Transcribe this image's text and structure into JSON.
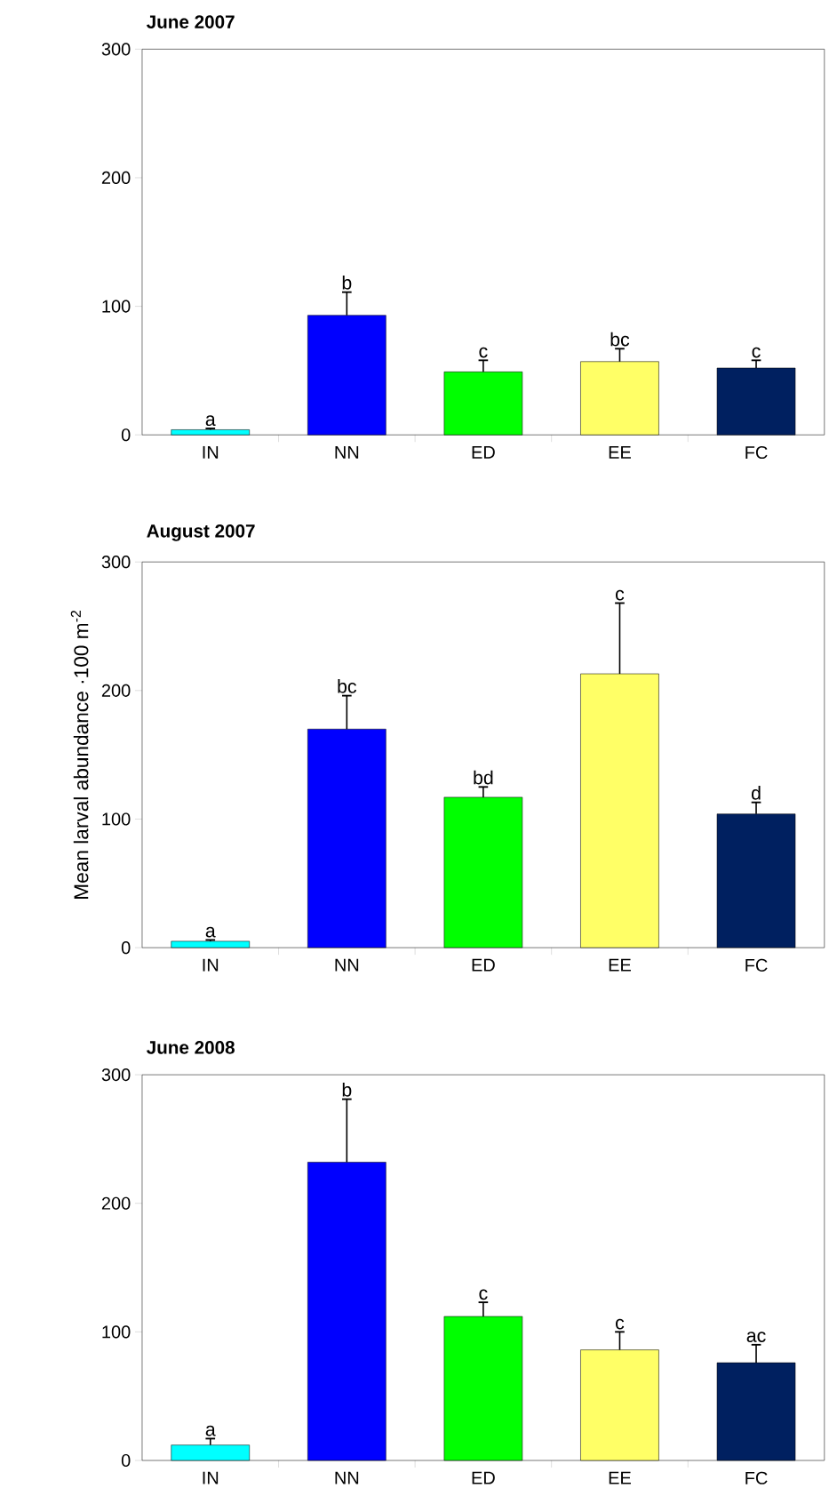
{
  "chart_data": [
    {
      "type": "bar",
      "title": "June 2007",
      "categories": [
        "IN",
        "NN",
        "ED",
        "EE",
        "FC"
      ],
      "values": [
        4,
        93,
        49,
        57,
        52
      ],
      "errors": [
        [
          4,
          5
        ],
        [
          93,
          111
        ],
        [
          49,
          58
        ],
        [
          57,
          67
        ],
        [
          52,
          58
        ]
      ],
      "colors": [
        "#00ffff",
        "#0000ff",
        "#00ff00",
        "#ffff66",
        "#002060"
      ],
      "ylim": [
        0,
        300
      ],
      "yticks": [
        0,
        100,
        200,
        300
      ],
      "annotations": [
        {
          "text": "a",
          "x": "IN",
          "y": 5
        },
        {
          "text": "b",
          "x": "NN",
          "y": 111
        },
        {
          "text": "c",
          "x": "ED",
          "y": 58
        },
        {
          "text": "bc",
          "x": "EE",
          "y": 67
        },
        {
          "text": "c",
          "x": "FC",
          "y": 58
        }
      ]
    },
    {
      "type": "bar",
      "title": "August 2007",
      "ylabel": "Mean larval abundance ·100 m$^{-2}$",
      "categories": [
        "IN",
        "NN",
        "ED",
        "EE",
        "FC"
      ],
      "values": [
        5,
        170,
        117,
        213,
        104
      ],
      "errors": [
        [
          5,
          6
        ],
        [
          170,
          196
        ],
        [
          117,
          125
        ],
        [
          213,
          268
        ],
        [
          104,
          113
        ]
      ],
      "colors": [
        "#00ffff",
        "#0000ff",
        "#00ff00",
        "#ffff66",
        "#002060"
      ],
      "ylim": [
        0,
        300
      ],
      "yticks": [
        0,
        100,
        200,
        300
      ],
      "annotations": [
        {
          "text": "a",
          "x": "IN",
          "y": 6
        },
        {
          "text": "bc",
          "x": "NN",
          "y": 196
        },
        {
          "text": "bd",
          "x": "ED",
          "y": 125
        },
        {
          "text": "c",
          "x": "EE",
          "y": 268
        },
        {
          "text": "d",
          "x": "FC",
          "y": 113
        }
      ]
    },
    {
      "type": "bar",
      "title": "June 2008",
      "categories": [
        "IN",
        "NN",
        "ED",
        "EE",
        "FC"
      ],
      "values": [
        12,
        232,
        112,
        86,
        76
      ],
      "errors": [
        [
          12,
          17
        ],
        [
          232,
          281
        ],
        [
          112,
          123
        ],
        [
          86,
          100
        ],
        [
          76,
          90
        ]
      ],
      "colors": [
        "#00ffff",
        "#0000ff",
        "#00ff00",
        "#ffff66",
        "#002060"
      ],
      "ylim": [
        0,
        300
      ],
      "yticks": [
        0,
        100,
        200,
        300
      ],
      "annotations": [
        {
          "text": "a",
          "x": "IN",
          "y": 17
        },
        {
          "text": "b",
          "x": "NN",
          "y": 281
        },
        {
          "text": "c",
          "x": "ED",
          "y": 123
        },
        {
          "text": "c",
          "x": "EE",
          "y": 100
        },
        {
          "text": "ac",
          "x": "FC",
          "y": 90
        }
      ]
    }
  ]
}
